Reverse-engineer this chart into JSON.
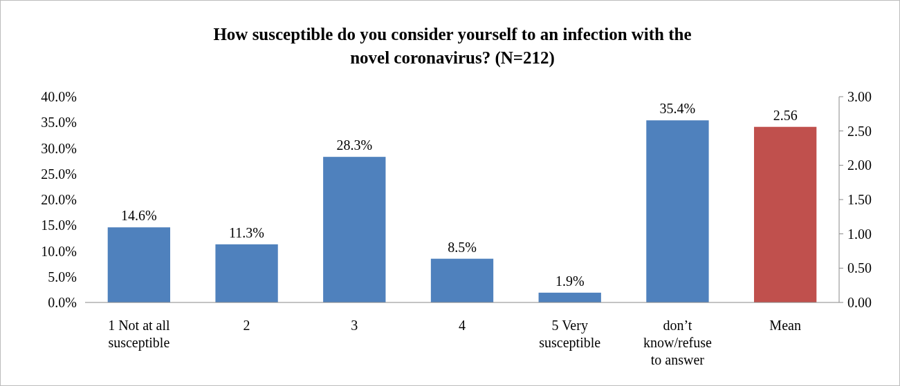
{
  "chart_data": {
    "type": "bar",
    "title": "How susceptible do you consider yourself to an infection with the novel coronavirus? (N=212)",
    "categories": [
      "1 Not at all susceptible",
      "2",
      "3",
      "4",
      "5 Very susceptible",
      "don’t know/refuse to answer",
      "Mean"
    ],
    "series": [
      {
        "color": "#4f81bd",
        "values": [
          14.6,
          11.3,
          28.3,
          8.5,
          1.9,
          35.4,
          null
        ],
        "value_labels": [
          "14.6%",
          "11.3%",
          "28.3%",
          "8.5%",
          "1.9%",
          "35.4%",
          null
        ]
      },
      {
        "color": "#c0504d",
        "axis": "y2",
        "values": [
          null,
          null,
          null,
          null,
          null,
          null,
          2.56
        ],
        "value_labels": [
          null,
          null,
          null,
          null,
          null,
          null,
          "2.56"
        ]
      }
    ],
    "ylim": [
      0,
      40
    ],
    "yticks": [
      {
        "value": 0,
        "label": "0.0%"
      },
      {
        "value": 5,
        "label": "5.0%"
      },
      {
        "value": 10,
        "label": "10.0%"
      },
      {
        "value": 15,
        "label": "15.0%"
      },
      {
        "value": 20,
        "label": "20.0%"
      },
      {
        "value": 25,
        "label": "25.0%"
      },
      {
        "value": 30,
        "label": "30.0%"
      },
      {
        "value": 35,
        "label": "35.0%"
      },
      {
        "value": 40,
        "label": "40.0%"
      }
    ],
    "y2lim": [
      0,
      3
    ],
    "y2ticks": [
      {
        "value": 0,
        "label": "0.00"
      },
      {
        "value": 0.5,
        "label": "0.50"
      },
      {
        "value": 1,
        "label": "1.00"
      },
      {
        "value": 1.5,
        "label": "1.50"
      },
      {
        "value": 2,
        "label": "2.00"
      },
      {
        "value": 2.5,
        "label": "2.50"
      },
      {
        "value": 3,
        "label": "3.00"
      }
    ],
    "grid": false
  }
}
